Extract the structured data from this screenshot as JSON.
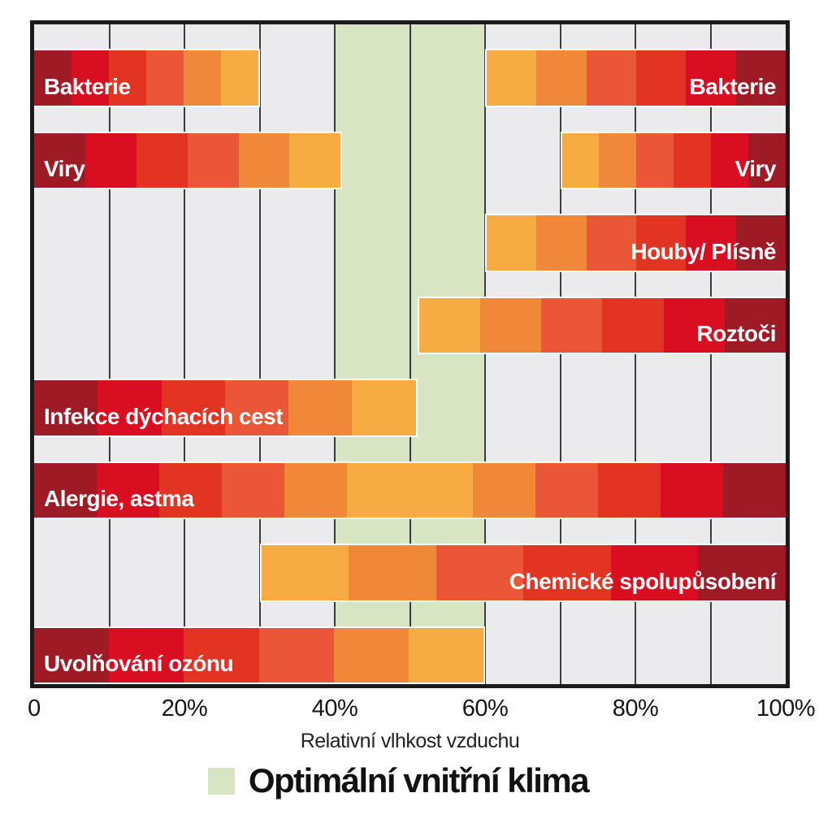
{
  "chart_data": {
    "type": "bar",
    "subtype": "horizontal-range-bars-with-gradient",
    "xlabel": "Relativní vlhkost vzduchu",
    "x_range": [
      0,
      100
    ],
    "gridline_interval": 10,
    "x_ticks": [
      {
        "label": "0",
        "pos": 0
      },
      {
        "label": "20%",
        "pos": 20
      },
      {
        "label": "40%",
        "pos": 40
      },
      {
        "label": "60%",
        "pos": 60
      },
      {
        "label": "80%",
        "pos": 80
      },
      {
        "label": "100%",
        "pos": 100
      }
    ],
    "optimal_band": {
      "start": 40,
      "end": 60,
      "color": "#d8e5c2"
    },
    "palette_dark_to_light": [
      "#9e1b26",
      "#d90e20",
      "#e33423",
      "#ea5737",
      "#f0883a",
      "#f6ac42"
    ],
    "rows": [
      {
        "bars": [
          {
            "label": "Bakterie",
            "start": 0,
            "end": 30,
            "segments": 6,
            "direction": "dark-to-light",
            "label_side": "left"
          },
          {
            "label": "Bakterie",
            "start": 60,
            "end": 100,
            "segments": 6,
            "direction": "light-to-dark",
            "label_side": "right"
          }
        ]
      },
      {
        "bars": [
          {
            "label": "Viry",
            "start": 0,
            "end": 41,
            "segments": 6,
            "direction": "dark-to-light",
            "label_side": "left"
          },
          {
            "label": "Viry",
            "start": 70,
            "end": 100,
            "segments": 6,
            "direction": "light-to-dark",
            "label_side": "right"
          }
        ]
      },
      {
        "bars": [
          {
            "label": "Houby/ Plísně",
            "start": 60,
            "end": 100,
            "segments": 6,
            "direction": "light-to-dark",
            "label_side": "right"
          }
        ]
      },
      {
        "bars": [
          {
            "label": "Roztoči",
            "start": 51,
            "end": 100,
            "segments": 6,
            "direction": "light-to-dark",
            "label_side": "right"
          }
        ]
      },
      {
        "bars": [
          {
            "label": "Infekce dýchacích cest",
            "start": 0,
            "end": 51,
            "segments": 6,
            "direction": "dark-to-light",
            "label_side": "left"
          }
        ]
      },
      {
        "bars": [
          {
            "label": "Alergie, astma",
            "start": 0,
            "end": 100,
            "segments": 12,
            "direction": "dark-light-dark",
            "label_side": "left"
          }
        ]
      },
      {
        "bars": [
          {
            "label": "Chemické spolupůsobení",
            "start": 30,
            "end": 100,
            "segments": 6,
            "direction": "light-to-dark",
            "label_side": "right"
          }
        ]
      },
      {
        "bars": [
          {
            "label": "Uvolňování ozónu",
            "start": 0,
            "end": 60,
            "segments": 6,
            "direction": "dark-to-light",
            "label_side": "left"
          }
        ]
      }
    ]
  },
  "legend": {
    "label": "Optimální vnitřní klima",
    "swatch_color": "#d8e5c2"
  },
  "colors": {
    "plot_background": "#ebebed",
    "optimal_band": "#d8e5c2",
    "gridline": "#3d3d3d",
    "plot_border": "#1b1b1b",
    "bar_label_text": "#ffffff",
    "axis_text": "#161616"
  }
}
